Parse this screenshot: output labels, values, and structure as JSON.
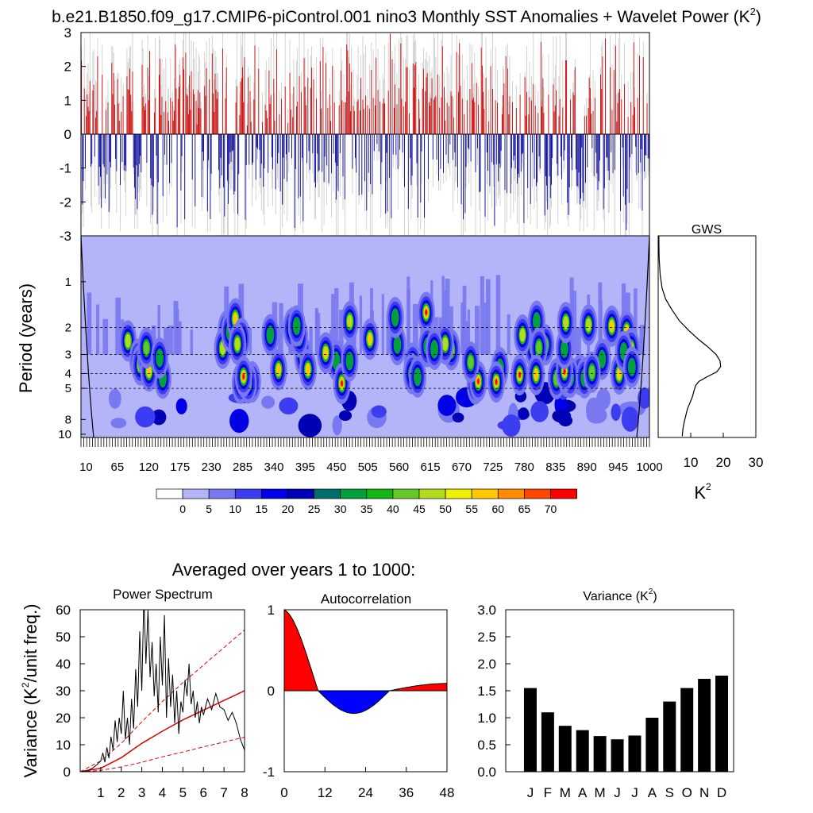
{
  "title": "b.e21.B1850.f09_g17.CMIP6-piControl.001 nino3 Monthly SST Anomalies + Wavelet Power (K",
  "title_sup": "2",
  "title_end": ")",
  "colors": {
    "positive": "#cc0000",
    "negative": "#000099",
    "gray": "#c8c8c8",
    "fill_pos": "#ff0000",
    "fill_neg": "#0000ff"
  },
  "chart_data": [
    {
      "id": "anomaly",
      "type": "bar",
      "ylim": [
        -3,
        3
      ],
      "yticks": [
        "3",
        "2",
        "1",
        "0",
        "-1",
        "-2",
        "-3"
      ],
      "x_range": [
        1,
        1000
      ],
      "note_values": "monthly bars, red above 0 and blue below 0, gray envelope behind"
    },
    {
      "id": "wavelet",
      "type": "heatmap",
      "ylabel": "Period (years)",
      "yticks": [
        "1",
        "2",
        "3",
        "4",
        "5",
        "8",
        "10"
      ],
      "ytick_values": [
        1,
        2,
        3,
        4,
        5,
        8,
        10
      ],
      "ylim": [
        0.5,
        10.5
      ],
      "xticks": [
        "10",
        "65",
        "120",
        "175",
        "230",
        "285",
        "340",
        "395",
        "450",
        "505",
        "560",
        "615",
        "670",
        "725",
        "780",
        "835",
        "890",
        "945",
        "1000"
      ],
      "xtick_values": [
        10,
        65,
        120,
        175,
        230,
        285,
        340,
        395,
        450,
        505,
        560,
        615,
        670,
        725,
        780,
        835,
        890,
        945,
        1000
      ],
      "dashed_periods": [
        2,
        3,
        4,
        5
      ],
      "colorbar": {
        "labels": [
          "0",
          "5",
          "10",
          "15",
          "20",
          "25",
          "30",
          "35",
          "40",
          "45",
          "50",
          "55",
          "60",
          "65",
          "70"
        ],
        "colors": [
          "#ffffff",
          "#b4b4f8",
          "#7878f0",
          "#3c3cf0",
          "#0000e6",
          "#0000b4",
          "#006e6e",
          "#00a03c",
          "#14b414",
          "#64c828",
          "#b4dc1e",
          "#f0f000",
          "#ffc800",
          "#ff8c00",
          "#ff4600",
          "#ff0000"
        ]
      }
    },
    {
      "id": "gws",
      "type": "line",
      "title": "GWS",
      "xticks": [
        "10",
        "20",
        "30"
      ],
      "xtick_values": [
        10,
        20,
        30
      ],
      "xlim": [
        0,
        30
      ],
      "xlabel": "K",
      "xlabel_sup": "2",
      "x": [
        0.2,
        0.3,
        0.6,
        1.2,
        2.3,
        4.0,
        6.5,
        9.5,
        12.5,
        15.5,
        17.8,
        19.0,
        19.2,
        18.0,
        15.0,
        12.5,
        11.5,
        11.0,
        10.5,
        9.8,
        9.0,
        8.5,
        8.0,
        7.6,
        7.4
      ],
      "period": [
        0.5,
        0.7,
        0.9,
        1.1,
        1.3,
        1.5,
        1.8,
        2.1,
        2.4,
        2.7,
        3.0,
        3.3,
        3.6,
        3.9,
        4.2,
        4.5,
        4.8,
        5.2,
        5.7,
        6.2,
        6.8,
        7.5,
        8.3,
        9.2,
        10.3
      ]
    },
    {
      "id": "power_spectrum",
      "type": "line",
      "title": "Power Spectrum",
      "ylabel": "Variance (K",
      "ylabel_sup": "2",
      "ylabel_end": "/unit freq.)",
      "xticks": [
        "1",
        "2",
        "3",
        "4",
        "5",
        "6",
        "7",
        "8"
      ],
      "xtick_values": [
        1,
        2,
        3,
        4,
        5,
        6,
        7,
        8
      ],
      "yticks": [
        "0",
        "10",
        "20",
        "30",
        "40",
        "50",
        "60"
      ],
      "ytick_values": [
        0,
        10,
        20,
        30,
        40,
        50,
        60
      ],
      "xlim": [
        0,
        8
      ],
      "ylim": [
        0,
        60
      ],
      "red_noise_x": [
        0,
        1,
        2,
        3,
        4,
        5,
        6,
        7,
        8
      ],
      "red_noise": [
        0,
        1.3,
        5.2,
        10.5,
        15,
        19.2,
        22.8,
        26.4,
        30
      ],
      "upper_x": [
        0,
        1,
        2,
        3,
        4,
        5,
        6,
        7,
        8
      ],
      "upper": [
        0,
        4,
        10.5,
        18.5,
        26,
        33,
        39.5,
        46,
        52.5
      ],
      "lower_x": [
        0,
        1,
        2,
        3,
        4,
        5,
        6,
        7,
        8
      ],
      "lower": [
        0,
        0.5,
        1.8,
        3.5,
        5.5,
        7.3,
        9.2,
        11,
        12.8
      ],
      "spec_x": [
        0.0,
        0.2,
        0.4,
        0.6,
        0.8,
        1.0,
        1.1,
        1.2,
        1.3,
        1.4,
        1.5,
        1.6,
        1.7,
        1.8,
        1.9,
        2.0,
        2.1,
        2.2,
        2.3,
        2.4,
        2.5,
        2.6,
        2.7,
        2.8,
        2.9,
        3.0,
        3.1,
        3.2,
        3.3,
        3.4,
        3.5,
        3.6,
        3.7,
        3.8,
        3.9,
        4.0,
        4.1,
        4.2,
        4.3,
        4.4,
        4.5,
        4.6,
        4.7,
        4.8,
        4.9,
        5.0,
        5.1,
        5.2,
        5.3,
        5.4,
        5.5,
        5.6,
        5.7,
        5.8,
        5.9,
        6.0,
        6.2,
        6.4,
        6.6,
        6.8,
        7.0,
        7.2,
        7.4,
        7.6,
        7.8,
        8.0
      ],
      "spec_y": [
        0.0,
        0.2,
        0.6,
        1.3,
        2.5,
        4.0,
        7.0,
        3.5,
        9.0,
        5.0,
        13.0,
        8.0,
        19.0,
        11.0,
        20.0,
        14.0,
        30.0,
        12.0,
        20.0,
        10.0,
        27.0,
        16.0,
        38.0,
        24.0,
        52.0,
        30.0,
        65.0,
        40.0,
        60.0,
        35.0,
        48.0,
        28.0,
        40.0,
        22.0,
        50.0,
        32.0,
        58.0,
        20.0,
        42.0,
        24.0,
        36.0,
        18.0,
        30.0,
        14.0,
        26.0,
        22.0,
        34.0,
        28.0,
        40.0,
        25.0,
        30.0,
        20.0,
        26.0,
        18.0,
        24.0,
        21.0,
        27.0,
        23.0,
        29.0,
        24.0,
        23.0,
        19.0,
        22.0,
        18.0,
        12.0,
        8.0
      ]
    },
    {
      "id": "autocorrelation",
      "type": "area",
      "title": "Autocorrelation",
      "xticks": [
        "0",
        "12",
        "24",
        "36",
        "48"
      ],
      "xtick_values": [
        0,
        12,
        24,
        36,
        48
      ],
      "yticks": [
        "1",
        "0",
        "-1"
      ],
      "ytick_values": [
        1,
        0,
        -1
      ],
      "xlim": [
        0,
        48
      ],
      "ylim": [
        -1,
        1
      ]
    },
    {
      "id": "variance",
      "type": "bar",
      "title": "Variance (K",
      "title_sup": "2",
      "title_end": ")",
      "categories": [
        "J",
        "F",
        "M",
        "A",
        "M",
        "J",
        "J",
        "A",
        "S",
        "O",
        "N",
        "D"
      ],
      "values": [
        1.55,
        1.1,
        0.85,
        0.77,
        0.66,
        0.6,
        0.67,
        1.0,
        1.3,
        1.55,
        1.72,
        1.78
      ],
      "yticks": [
        "0.0",
        "0.5",
        "1.0",
        "1.5",
        "2.0",
        "2.5",
        "3.0"
      ],
      "ytick_values": [
        0,
        0.5,
        1.0,
        1.5,
        2.0,
        2.5,
        3.0
      ],
      "ylim": [
        0,
        3.0
      ]
    }
  ],
  "averaged_label": "Averaged over years 1 to 1000:"
}
